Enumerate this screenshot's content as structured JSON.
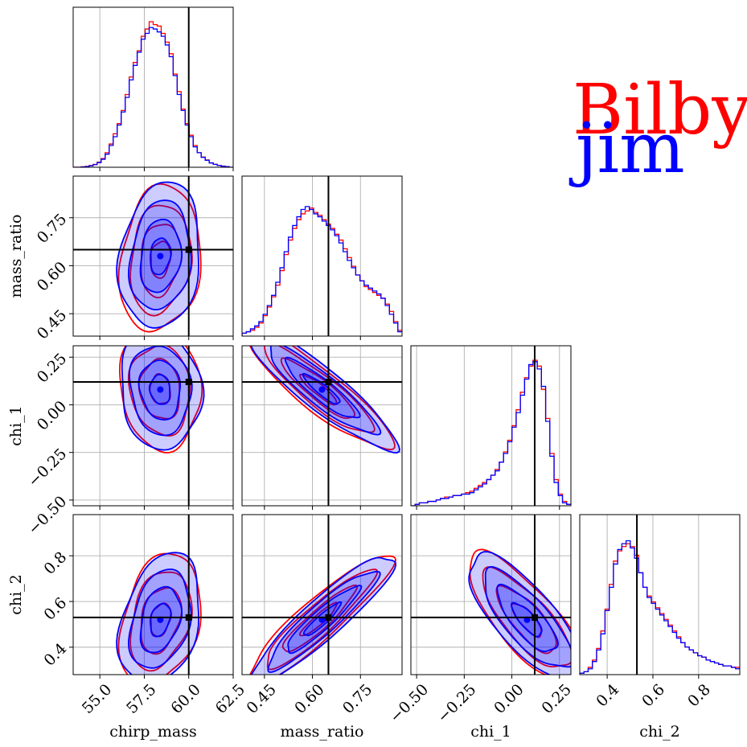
{
  "legend": {
    "entries": [
      {
        "label": "Bilby",
        "color": "#ff0000"
      },
      {
        "label": "jim",
        "color": "#0000ff"
      }
    ]
  },
  "chart_data": {
    "type": "corner",
    "parameters": [
      "chirp_mass",
      "mass_ratio",
      "chi_1",
      "chi_2"
    ],
    "axis_labels": [
      "chirp_mass",
      "mass_ratio",
      "chi_1",
      "chi_2"
    ],
    "ranges": [
      [
        53.5,
        62.5
      ],
      [
        0.38,
        0.88
      ],
      [
        -0.53,
        0.31
      ],
      [
        0.28,
        0.98
      ]
    ],
    "ticks": [
      {
        "values": [
          55.0,
          57.5,
          60.0,
          62.5
        ],
        "labels": [
          "55.0",
          "57.5",
          "60.0",
          "62.5"
        ]
      },
      {
        "values": [
          0.45,
          0.6,
          0.75
        ],
        "labels": [
          "0.45",
          "0.60",
          "0.75"
        ]
      },
      {
        "values": [
          -0.5,
          -0.25,
          0.0,
          0.25
        ],
        "labels": [
          "−0.50",
          "−0.25",
          "0.00",
          "0.25"
        ]
      },
      {
        "values": [
          0.4,
          0.6,
          0.8
        ],
        "labels": [
          "0.4",
          "0.6",
          "0.8"
        ]
      }
    ],
    "truths": [
      60.0,
      0.65,
      0.12,
      0.53
    ],
    "grid": true,
    "series": [
      {
        "name": "Bilby",
        "color": "#ff0000",
        "means": [
          58.4,
          0.62,
          0.08,
          0.52
        ],
        "sds": [
          0.95,
          0.095,
          0.13,
          0.12
        ],
        "histograms": [
          [
            0.0,
            0.0,
            0.003,
            0.006,
            0.012,
            0.02,
            0.035,
            0.06,
            0.1,
            0.16,
            0.23,
            0.3,
            0.39,
            0.5,
            0.62,
            0.72,
            0.8,
            0.9,
            0.95,
            1.0,
            0.98,
            0.97,
            0.92,
            0.86,
            0.78,
            0.64,
            0.52,
            0.4,
            0.3,
            0.22,
            0.15,
            0.1,
            0.07,
            0.05,
            0.03,
            0.02,
            0.012,
            0.008,
            0.004,
            0.0
          ],
          [
            0.02,
            0.03,
            0.04,
            0.06,
            0.09,
            0.14,
            0.2,
            0.27,
            0.35,
            0.45,
            0.56,
            0.66,
            0.74,
            0.8,
            0.84,
            0.86,
            0.88,
            0.85,
            0.83,
            0.8,
            0.77,
            0.74,
            0.7,
            0.66,
            0.6,
            0.54,
            0.48,
            0.42,
            0.38,
            0.34,
            0.32,
            0.3,
            0.28,
            0.26,
            0.22,
            0.17,
            0.1,
            0.04
          ],
          [
            0.0,
            0.01,
            0.02,
            0.02,
            0.03,
            0.03,
            0.04,
            0.05,
            0.06,
            0.06,
            0.07,
            0.07,
            0.08,
            0.09,
            0.1,
            0.12,
            0.14,
            0.16,
            0.18,
            0.21,
            0.25,
            0.3,
            0.37,
            0.45,
            0.55,
            0.66,
            0.78,
            0.88,
            0.96,
            1.0,
            0.96,
            0.8,
            0.6,
            0.36,
            0.18,
            0.08,
            0.03,
            0.01
          ],
          [
            0.01,
            0.02,
            0.05,
            0.1,
            0.18,
            0.3,
            0.45,
            0.62,
            0.78,
            0.85,
            0.88,
            0.9,
            0.88,
            0.82,
            0.7,
            0.6,
            0.54,
            0.5,
            0.46,
            0.42,
            0.38,
            0.34,
            0.3,
            0.26,
            0.22,
            0.19,
            0.17,
            0.15,
            0.13,
            0.12,
            0.1,
            0.09,
            0.08,
            0.07,
            0.06,
            0.06,
            0.05,
            0.05
          ]
        ]
      },
      {
        "name": "jim",
        "color": "#0000ff",
        "means": [
          58.4,
          0.63,
          0.08,
          0.52
        ],
        "sds": [
          0.95,
          0.095,
          0.13,
          0.12
        ],
        "histograms": [
          [
            0.0,
            0.0,
            0.002,
            0.005,
            0.01,
            0.018,
            0.032,
            0.055,
            0.09,
            0.15,
            0.21,
            0.29,
            0.38,
            0.48,
            0.6,
            0.7,
            0.79,
            0.88,
            0.92,
            0.96,
            0.95,
            0.93,
            0.9,
            0.84,
            0.76,
            0.63,
            0.5,
            0.39,
            0.29,
            0.21,
            0.14,
            0.1,
            0.068,
            0.048,
            0.03,
            0.02,
            0.012,
            0.007,
            0.004,
            0.0
          ],
          [
            0.02,
            0.03,
            0.05,
            0.07,
            0.1,
            0.15,
            0.21,
            0.28,
            0.37,
            0.47,
            0.58,
            0.68,
            0.76,
            0.82,
            0.87,
            0.89,
            0.87,
            0.84,
            0.82,
            0.79,
            0.76,
            0.73,
            0.69,
            0.64,
            0.58,
            0.52,
            0.47,
            0.42,
            0.38,
            0.35,
            0.33,
            0.31,
            0.29,
            0.26,
            0.21,
            0.15,
            0.09,
            0.03
          ],
          [
            0.0,
            0.01,
            0.02,
            0.02,
            0.03,
            0.03,
            0.04,
            0.05,
            0.05,
            0.06,
            0.07,
            0.07,
            0.08,
            0.08,
            0.09,
            0.11,
            0.13,
            0.15,
            0.18,
            0.21,
            0.24,
            0.3,
            0.36,
            0.44,
            0.54,
            0.64,
            0.76,
            0.87,
            0.97,
            0.99,
            0.94,
            0.82,
            0.58,
            0.34,
            0.16,
            0.07,
            0.02,
            0.01
          ],
          [
            0.01,
            0.02,
            0.04,
            0.09,
            0.17,
            0.28,
            0.44,
            0.6,
            0.76,
            0.86,
            0.9,
            0.92,
            0.87,
            0.8,
            0.7,
            0.6,
            0.53,
            0.49,
            0.45,
            0.41,
            0.37,
            0.33,
            0.29,
            0.25,
            0.22,
            0.19,
            0.17,
            0.15,
            0.13,
            0.12,
            0.1,
            0.09,
            0.08,
            0.07,
            0.06,
            0.06,
            0.05,
            0.04
          ]
        ]
      }
    ],
    "correlations": {
      "0-1": 0.15,
      "0-2": -0.1,
      "0-3": 0.3,
      "1-2": -0.9,
      "1-3": 0.92,
      "2-3": -0.78
    },
    "contour_levels_sigma": [
      0.5,
      1.0,
      1.5,
      2.0
    ]
  }
}
